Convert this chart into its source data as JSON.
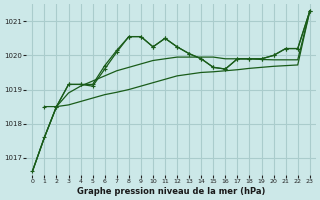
{
  "bg_color": "#cce8e8",
  "grid_color": "#aacccc",
  "line_color": "#1a5c1a",
  "title": "Graphe pression niveau de la mer (hPa)",
  "xlim": [
    -0.5,
    23.5
  ],
  "ylim": [
    1016.5,
    1021.5
  ],
  "yticks": [
    1017,
    1018,
    1019,
    1020,
    1021
  ],
  "xticks": [
    0,
    1,
    2,
    3,
    4,
    5,
    6,
    7,
    8,
    9,
    10,
    11,
    12,
    13,
    14,
    15,
    16,
    17,
    18,
    19,
    20,
    21,
    22,
    23
  ],
  "series": [
    {
      "x": [
        0,
        1,
        2,
        3,
        4,
        5,
        6,
        7,
        8,
        9,
        10,
        11,
        12,
        13,
        14,
        15,
        16,
        17,
        18,
        19,
        20,
        21,
        22,
        23
      ],
      "y": [
        1016.6,
        1017.6,
        1018.5,
        1019.15,
        1019.15,
        1019.1,
        1019.6,
        1020.1,
        1020.55,
        1020.55,
        1020.25,
        1020.5,
        1020.25,
        1020.05,
        1019.9,
        1019.65,
        1019.6,
        1019.9,
        1019.9,
        1019.9,
        1020.0,
        1020.2,
        1020.2,
        1021.3
      ],
      "marker": "+"
    },
    {
      "x": [
        1,
        2,
        3,
        4,
        5,
        6,
        7,
        8,
        9,
        10,
        11,
        12,
        13,
        14,
        15,
        16,
        17,
        18,
        19,
        20,
        21,
        22,
        23
      ],
      "y": [
        1018.5,
        1018.5,
        1019.15,
        1019.15,
        1019.15,
        1019.7,
        1020.15,
        1020.55,
        1020.55,
        1020.25,
        1020.5,
        1020.25,
        1020.05,
        1019.9,
        1019.65,
        1019.6,
        1019.9,
        1019.9,
        1019.9,
        1020.0,
        1020.2,
        1020.2,
        1021.3
      ],
      "marker": "+"
    },
    {
      "x": [
        0,
        1,
        2,
        3,
        4,
        5,
        6,
        7,
        8,
        9,
        10,
        11,
        12,
        13,
        14,
        15,
        16,
        17,
        18,
        19,
        20,
        21,
        22,
        23
      ],
      "y": [
        1016.6,
        1017.6,
        1018.5,
        1018.9,
        1019.1,
        1019.25,
        1019.4,
        1019.55,
        1019.65,
        1019.75,
        1019.85,
        1019.9,
        1019.95,
        1019.95,
        1019.95,
        1019.95,
        1019.9,
        1019.9,
        1019.9,
        1019.88,
        1019.87,
        1019.87,
        1019.87,
        1021.3
      ],
      "marker": null
    },
    {
      "x": [
        0,
        1,
        2,
        3,
        4,
        5,
        6,
        7,
        8,
        9,
        10,
        11,
        12,
        13,
        14,
        15,
        16,
        17,
        18,
        19,
        20,
        21,
        22,
        23
      ],
      "y": [
        1016.6,
        1017.6,
        1018.5,
        1018.55,
        1018.65,
        1018.75,
        1018.85,
        1018.92,
        1019.0,
        1019.1,
        1019.2,
        1019.3,
        1019.4,
        1019.45,
        1019.5,
        1019.52,
        1019.55,
        1019.58,
        1019.62,
        1019.65,
        1019.68,
        1019.7,
        1019.72,
        1021.3
      ],
      "marker": null
    }
  ]
}
